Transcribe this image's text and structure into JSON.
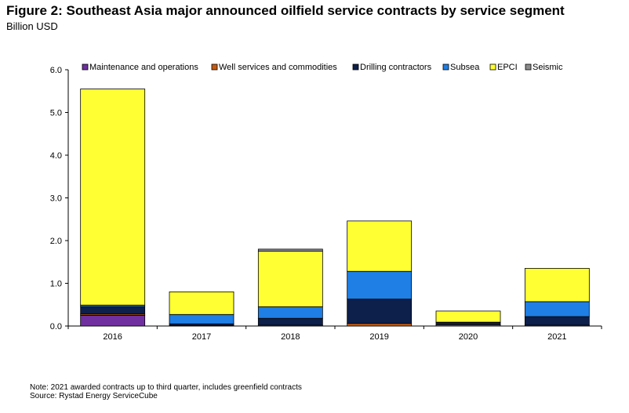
{
  "title": "Figure 2: Southeast Asia major announced oilfield service contracts by service segment",
  "subtitle": "Billion USD",
  "notes": {
    "note": "Note: 2021 awarded contracts up to third quarter, includes greenfield contracts",
    "source": "Source: Rystad Energy ServiceCube"
  },
  "chart_data": {
    "type": "bar",
    "stacked": true,
    "categories": [
      "2016",
      "2017",
      "2018",
      "2019",
      "2020",
      "2021"
    ],
    "ylim": [
      0,
      6
    ],
    "yticks": [
      "0.0",
      "1.0",
      "2.0",
      "3.0",
      "4.0",
      "5.0",
      "6.0"
    ],
    "grid": false,
    "legend": "top",
    "series": [
      {
        "name": "Maintenance and operations",
        "color": "#7030A0",
        "values": [
          0.25,
          0.0,
          0.0,
          0.0,
          0.0,
          0.0
        ]
      },
      {
        "name": "Well services and commodities",
        "color": "#C55A11",
        "values": [
          0.03,
          0.01,
          0.02,
          0.06,
          0.03,
          0.02
        ]
      },
      {
        "name": "Drilling contractors",
        "color": "#0D1F4B",
        "values": [
          0.17,
          0.04,
          0.16,
          0.57,
          0.05,
          0.2
        ]
      },
      {
        "name": "Subsea",
        "color": "#1F7FE5",
        "values": [
          0.04,
          0.22,
          0.27,
          0.65,
          0.01,
          0.35
        ]
      },
      {
        "name": "EPCI",
        "color": "#FFFF33",
        "values": [
          5.06,
          0.53,
          1.3,
          1.18,
          0.26,
          0.78
        ]
      },
      {
        "name": "Seismic",
        "color": "#8C8C8C",
        "values": [
          0.0,
          0.0,
          0.05,
          0.0,
          0.0,
          0.0
        ]
      }
    ]
  }
}
